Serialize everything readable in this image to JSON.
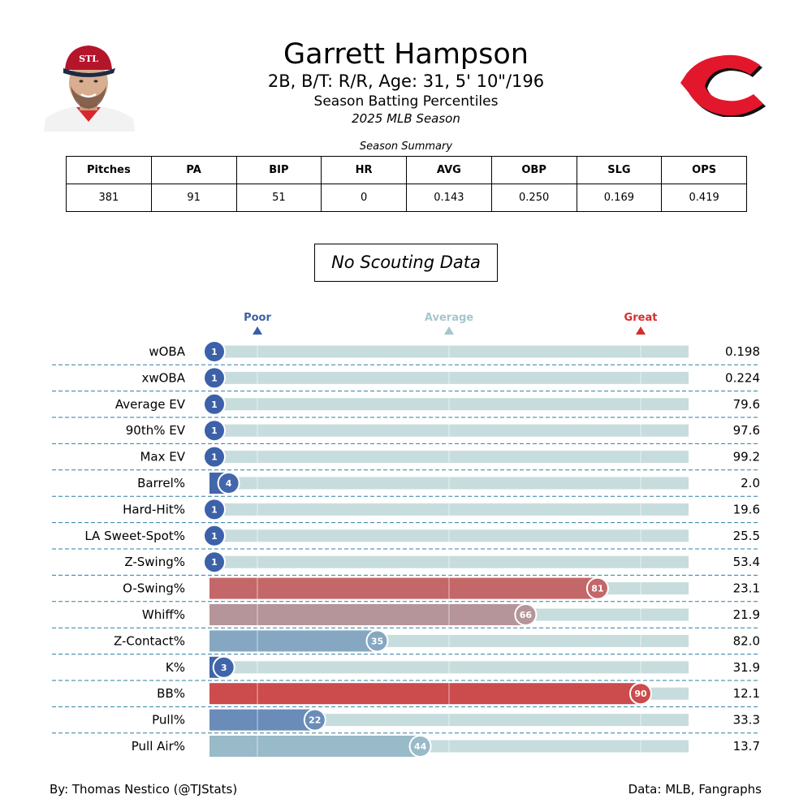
{
  "header": {
    "name": "Garrett Hampson",
    "bio": "2B, B/T: R/R, Age: 31, 5' 10\"/196",
    "subtitle": "Season Batting Percentiles",
    "season": "2025 MLB Season",
    "cap_logo_text": "STL"
  },
  "summary": {
    "title": "Season Summary",
    "columns": [
      "Pitches",
      "PA",
      "BIP",
      "HR",
      "AVG",
      "OBP",
      "SLG",
      "OPS"
    ],
    "values": [
      "381",
      "91",
      "51",
      "0",
      "0.143",
      "0.250",
      "0.169",
      "0.419"
    ]
  },
  "scouting": "No Scouting Data",
  "scale_markers": {
    "poor": "Poor",
    "average": "Average",
    "great": "Great"
  },
  "colors": {
    "poor": "#3a5fa8",
    "average": "#a6c6cc",
    "great": "#d62c2c",
    "track": "#c7dcdd",
    "divider": "#2a7fa2",
    "team_red": "#e3172c"
  },
  "chart_data": {
    "type": "bar",
    "xlim": [
      0,
      100
    ],
    "metrics": [
      {
        "label": "wOBA",
        "percentile": 1,
        "value": "0.198"
      },
      {
        "label": "xwOBA",
        "percentile": 1,
        "value": "0.224"
      },
      {
        "label": "Average EV",
        "percentile": 1,
        "value": "79.6"
      },
      {
        "label": "90th% EV",
        "percentile": 1,
        "value": "97.6"
      },
      {
        "label": "Max EV",
        "percentile": 1,
        "value": "99.2"
      },
      {
        "label": "Barrel%",
        "percentile": 4,
        "value": "2.0"
      },
      {
        "label": "Hard-Hit%",
        "percentile": 1,
        "value": "19.6"
      },
      {
        "label": "LA Sweet-Spot%",
        "percentile": 1,
        "value": "25.5"
      },
      {
        "label": "Z-Swing%",
        "percentile": 1,
        "value": "53.4"
      },
      {
        "label": "O-Swing%",
        "percentile": 81,
        "value": "23.1"
      },
      {
        "label": "Whiff%",
        "percentile": 66,
        "value": "21.9"
      },
      {
        "label": "Z-Contact%",
        "percentile": 35,
        "value": "82.0"
      },
      {
        "label": "K%",
        "percentile": 3,
        "value": "31.9"
      },
      {
        "label": "BB%",
        "percentile": 90,
        "value": "12.1"
      },
      {
        "label": "Pull%",
        "percentile": 22,
        "value": "33.3"
      },
      {
        "label": "Pull Air%",
        "percentile": 44,
        "value": "13.7"
      }
    ]
  },
  "footer": {
    "credit": "By: Thomas Nestico (@TJStats)",
    "source": "Data: MLB, Fangraphs"
  }
}
